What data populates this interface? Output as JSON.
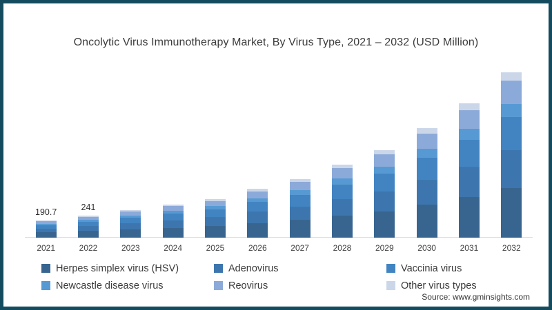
{
  "window": {
    "border_color": "#154b5e",
    "background_color": "#ffffff"
  },
  "title": "Oncolytic Virus Immunotherapy Market, By Virus Type, 2021 – 2032 (USD Million)",
  "source_note": "Source: www.gminsights.com",
  "chart_data": {
    "type": "bar",
    "stacked": true,
    "title": "Oncolytic Virus Immunotherapy Market, By Virus Type, 2021 – 2032 (USD Million)",
    "xlabel": "",
    "ylabel": "",
    "unit": "USD Million",
    "grid": false,
    "legend_position": "bottom",
    "ylim": [
      0,
      1812
    ],
    "axis_line_color": "#d8dde2",
    "categories": [
      "2021",
      "2022",
      "2023",
      "2024",
      "2025",
      "2026",
      "2027",
      "2028",
      "2029",
      "2030",
      "2031",
      "2032"
    ],
    "totals": [
      190.7,
      241,
      302,
      362,
      424,
      536,
      642,
      800,
      960,
      1200,
      1472,
      1812
    ],
    "bar_labels": [
      "190.7",
      "241",
      "",
      "",
      "",
      "",
      "",
      "",
      "",
      "",
      "",
      ""
    ],
    "series": [
      {
        "name": "Herpes simplex virus (HSV)",
        "color": "#38658f",
        "share_pct": 30,
        "values": [
          57,
          72,
          91,
          109,
          127,
          161,
          193,
          240,
          288,
          360,
          442,
          544
        ]
      },
      {
        "name": "Adenovirus",
        "color": "#3d76ae",
        "share_pct": 23,
        "values": [
          44,
          55,
          69,
          83,
          98,
          123,
          148,
          184,
          221,
          276,
          339,
          417
        ]
      },
      {
        "name": "Vaccinia virus",
        "color": "#4284c2",
        "share_pct": 20,
        "values": [
          38,
          48,
          60,
          72,
          85,
          107,
          128,
          160,
          192,
          240,
          294,
          362
        ]
      },
      {
        "name": "Newcastle disease virus",
        "color": "#579ad3",
        "share_pct": 8,
        "values": [
          15,
          19,
          24,
          29,
          34,
          43,
          51,
          64,
          77,
          96,
          118,
          145
        ]
      },
      {
        "name": "Reovirus",
        "color": "#8caad9",
        "share_pct": 14,
        "values": [
          27,
          34,
          42,
          51,
          59,
          75,
          90,
          112,
          134,
          168,
          206,
          254
        ]
      },
      {
        "name": "Other virus types",
        "color": "#cbd7e9",
        "share_pct": 5,
        "values": [
          10,
          12,
          15,
          18,
          21,
          27,
          32,
          40,
          48,
          60,
          74,
          91
        ]
      }
    ]
  }
}
